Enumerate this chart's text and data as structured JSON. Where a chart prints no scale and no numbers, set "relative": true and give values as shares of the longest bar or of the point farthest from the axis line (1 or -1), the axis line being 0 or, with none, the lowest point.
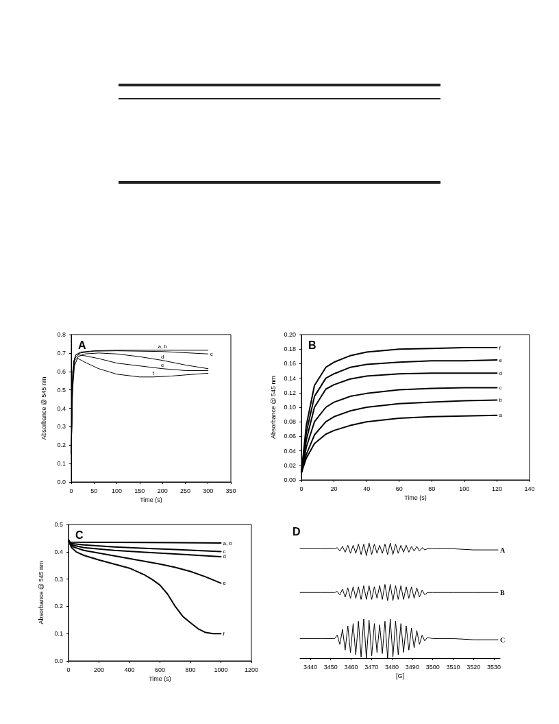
{
  "chart_data": [
    {
      "type": "line",
      "title": "A",
      "xlabel": "Time (s)",
      "ylabel": "Absorbance @ 545 nm",
      "xlim": [
        0,
        350
      ],
      "xticks": [
        0,
        50,
        100,
        150,
        200,
        250,
        300,
        350
      ],
      "ylim": [
        0,
        0.8
      ],
      "yticks": [
        {
          "value": 0,
          "label": "0.0"
        },
        0.1,
        0.2,
        0.3,
        0.4,
        0.5,
        0.6,
        0.7,
        0.8
      ],
      "grid": false,
      "marker": "none",
      "series": [
        {
          "name": "a, b",
          "color": "#000000",
          "x": [
            0,
            2,
            5,
            10,
            20,
            50,
            100,
            200,
            300
          ],
          "values": [
            0.15,
            0.5,
            0.65,
            0.69,
            0.705,
            0.712,
            0.715,
            0.715,
            0.715
          ]
        },
        {
          "name": "c",
          "color": "#000000",
          "x": [
            0,
            3,
            6,
            10,
            20,
            50,
            100,
            200,
            300
          ],
          "values": [
            0.15,
            0.55,
            0.66,
            0.69,
            0.7,
            0.71,
            0.712,
            0.708,
            0.695
          ]
        },
        {
          "name": "d",
          "color": "#000000",
          "x": [
            0,
            3,
            7,
            15,
            30,
            60,
            100,
            150,
            200,
            250,
            300
          ],
          "values": [
            0.15,
            0.5,
            0.63,
            0.68,
            0.695,
            0.7,
            0.695,
            0.68,
            0.66,
            0.635,
            0.615
          ]
        },
        {
          "name": "e",
          "color": "#000000",
          "x": [
            0,
            3,
            8,
            15,
            30,
            60,
            100,
            150,
            200,
            250,
            300
          ],
          "values": [
            0.15,
            0.55,
            0.67,
            0.69,
            0.685,
            0.67,
            0.645,
            0.63,
            0.615,
            0.605,
            0.605
          ]
        },
        {
          "name": "f",
          "color": "#000000",
          "x": [
            0,
            3,
            8,
            15,
            30,
            60,
            100,
            150,
            180,
            220,
            260,
            300
          ],
          "values": [
            0.15,
            0.6,
            0.665,
            0.67,
            0.65,
            0.615,
            0.585,
            0.57,
            0.57,
            0.575,
            0.583,
            0.59
          ]
        }
      ]
    },
    {
      "type": "line",
      "title": "B",
      "xlabel": "Time (s)",
      "ylabel": "Absorbance @ 545 nm",
      "xlim": [
        0,
        140
      ],
      "xticks": [
        0,
        20,
        40,
        60,
        80,
        100,
        120,
        140
      ],
      "ylim": [
        0,
        0.2
      ],
      "yticks": [
        {
          "value": 0,
          "label": "0.00"
        },
        {
          "value": 0.02,
          "label": "0.02"
        },
        {
          "value": 0.04,
          "label": "0.04"
        },
        {
          "value": 0.06,
          "label": "0.06"
        },
        {
          "value": 0.08,
          "label": "0.08"
        },
        {
          "value": 0.1,
          "label": "0.10"
        },
        {
          "value": 0.12,
          "label": "0.12"
        },
        {
          "value": 0.14,
          "label": "0.14"
        },
        {
          "value": 0.16,
          "label": "0.16"
        },
        {
          "value": 0.18,
          "label": "0.18"
        },
        {
          "value": 0.2,
          "label": "0.20"
        }
      ],
      "grid": false,
      "marker": "none",
      "series": [
        {
          "name": "a",
          "color": "#000000",
          "x": [
            0,
            3,
            8,
            15,
            20,
            30,
            40,
            60,
            80,
            100,
            120
          ],
          "values": [
            0.01,
            0.03,
            0.05,
            0.063,
            0.068,
            0.075,
            0.08,
            0.085,
            0.087,
            0.088,
            0.089
          ]
        },
        {
          "name": "b",
          "color": "#000000",
          "x": [
            0,
            3,
            8,
            15,
            20,
            30,
            40,
            60,
            80,
            100,
            120
          ],
          "values": [
            0.01,
            0.035,
            0.062,
            0.08,
            0.087,
            0.095,
            0.1,
            0.105,
            0.107,
            0.109,
            0.11
          ]
        },
        {
          "name": "c",
          "color": "#000000",
          "x": [
            0,
            3,
            8,
            15,
            20,
            30,
            40,
            60,
            80,
            100,
            120
          ],
          "values": [
            0.01,
            0.045,
            0.08,
            0.1,
            0.107,
            0.115,
            0.119,
            0.124,
            0.126,
            0.127,
            0.127
          ]
        },
        {
          "name": "d",
          "color": "#000000",
          "x": [
            0,
            3,
            8,
            15,
            20,
            30,
            40,
            60,
            80,
            100,
            120
          ],
          "values": [
            0.01,
            0.055,
            0.1,
            0.125,
            0.131,
            0.139,
            0.143,
            0.146,
            0.147,
            0.147,
            0.147
          ]
        },
        {
          "name": "e",
          "color": "#000000",
          "x": [
            0,
            3,
            8,
            15,
            20,
            30,
            40,
            60,
            80,
            100,
            120
          ],
          "values": [
            0.01,
            0.065,
            0.115,
            0.14,
            0.146,
            0.155,
            0.159,
            0.162,
            0.164,
            0.164,
            0.165
          ]
        },
        {
          "name": "f",
          "color": "#000000",
          "x": [
            0,
            3,
            8,
            15,
            20,
            30,
            40,
            60,
            80,
            100,
            120
          ],
          "values": [
            0.01,
            0.075,
            0.13,
            0.155,
            0.162,
            0.171,
            0.176,
            0.18,
            0.181,
            0.182,
            0.182
          ]
        }
      ]
    },
    {
      "type": "line",
      "title": "C",
      "xlabel": "Time (s)",
      "ylabel": "Absorbance @ 545 nm",
      "xlim": [
        0,
        1200
      ],
      "xticks": [
        0,
        200,
        400,
        600,
        800,
        1000,
        1200
      ],
      "ylim": [
        0,
        0.5
      ],
      "yticks": [
        {
          "value": 0,
          "label": "0.0"
        },
        0.1,
        0.2,
        0.3,
        0.4,
        0.5
      ],
      "grid": false,
      "marker": "none",
      "series": [
        {
          "name": "a, b",
          "color": "#000000",
          "x": [
            0,
            10,
            500,
            1000
          ],
          "values": [
            0.445,
            0.435,
            0.434,
            0.432
          ]
        },
        {
          "name": "c",
          "color": "#000000",
          "x": [
            0,
            20,
            100,
            300,
            500,
            700,
            1000
          ],
          "values": [
            0.44,
            0.43,
            0.425,
            0.418,
            0.413,
            0.408,
            0.401
          ]
        },
        {
          "name": "d",
          "color": "#000000",
          "x": [
            0,
            20,
            100,
            300,
            500,
            700,
            1000
          ],
          "values": [
            0.44,
            0.425,
            0.415,
            0.405,
            0.398,
            0.392,
            0.382
          ]
        },
        {
          "name": "e",
          "color": "#000000",
          "x": [
            0,
            20,
            100,
            200,
            400,
            600,
            700,
            800,
            900,
            1000
          ],
          "values": [
            0.44,
            0.42,
            0.405,
            0.395,
            0.375,
            0.355,
            0.343,
            0.328,
            0.308,
            0.285
          ]
        },
        {
          "name": "f",
          "color": "#000000",
          "x": [
            0,
            20,
            50,
            100,
            200,
            300,
            400,
            500,
            550,
            600,
            650,
            700,
            750,
            800,
            850,
            900,
            950,
            1000
          ],
          "values": [
            0.44,
            0.415,
            0.4,
            0.387,
            0.37,
            0.355,
            0.34,
            0.315,
            0.298,
            0.278,
            0.245,
            0.2,
            0.163,
            0.14,
            0.118,
            0.104,
            0.1,
            0.1
          ]
        }
      ]
    },
    {
      "type": "line",
      "title": "D",
      "xlabel": "[G]",
      "relative": true,
      "xlim": [
        3435,
        3533
      ],
      "xticks": [
        3440,
        3450,
        3460,
        3470,
        3480,
        3490,
        3500,
        3510,
        3520,
        3530
      ],
      "tick_labels": "x",
      "grid": false,
      "marker": "none",
      "x": [
        3435,
        3445,
        3452,
        3453.2,
        3454.5,
        3455.8,
        3457.1,
        3458.4,
        3459.7,
        3461.0,
        3462.3,
        3463.6,
        3464.9,
        3466.2,
        3467.5,
        3468.8,
        3470.1,
        3471.4,
        3472.7,
        3474.0,
        3475.3,
        3476.6,
        3477.9,
        3479.2,
        3480.5,
        3481.8,
        3483.1,
        3484.4,
        3485.7,
        3487.0,
        3488.3,
        3489.6,
        3490.9,
        3492.2,
        3493.5,
        3494.8,
        3496.1,
        3497.4,
        3500,
        3510,
        3520,
        3532
      ],
      "series": [
        {
          "name": "A",
          "color": "#000000",
          "values": [
            0.95,
            0.95,
            0.95,
            0.96,
            0.93,
            0.97,
            0.92,
            0.98,
            0.91,
            0.98,
            0.91,
            0.99,
            0.9,
            0.99,
            0.89,
            1.0,
            0.9,
            0.99,
            0.91,
            0.98,
            0.91,
            0.99,
            0.9,
            1.0,
            0.9,
            0.99,
            0.91,
            0.98,
            0.92,
            0.98,
            0.92,
            0.97,
            0.93,
            0.97,
            0.93,
            0.96,
            0.94,
            0.95,
            0.95,
            0.95,
            0.94,
            0.94
          ]
        },
        {
          "name": "B",
          "color": "#000000",
          "values": [
            0.57,
            0.57,
            0.57,
            0.58,
            0.55,
            0.6,
            0.53,
            0.61,
            0.52,
            0.62,
            0.52,
            0.62,
            0.51,
            0.63,
            0.51,
            0.63,
            0.51,
            0.62,
            0.52,
            0.63,
            0.51,
            0.64,
            0.5,
            0.64,
            0.5,
            0.63,
            0.51,
            0.63,
            0.51,
            0.62,
            0.52,
            0.62,
            0.52,
            0.61,
            0.53,
            0.59,
            0.55,
            0.57,
            0.57,
            0.57,
            0.57,
            0.57
          ]
        },
        {
          "name": "C",
          "color": "#000000",
          "values": [
            0.17,
            0.17,
            0.17,
            0.2,
            0.12,
            0.25,
            0.07,
            0.28,
            0.05,
            0.3,
            0.03,
            0.32,
            0.01,
            0.34,
            0.0,
            0.33,
            0.02,
            0.3,
            0.05,
            0.29,
            0.04,
            0.32,
            0.0,
            0.34,
            0.01,
            0.32,
            0.03,
            0.3,
            0.05,
            0.28,
            0.07,
            0.26,
            0.09,
            0.24,
            0.12,
            0.2,
            0.15,
            0.18,
            0.17,
            0.17,
            0.16,
            0.16
          ]
        }
      ]
    }
  ]
}
